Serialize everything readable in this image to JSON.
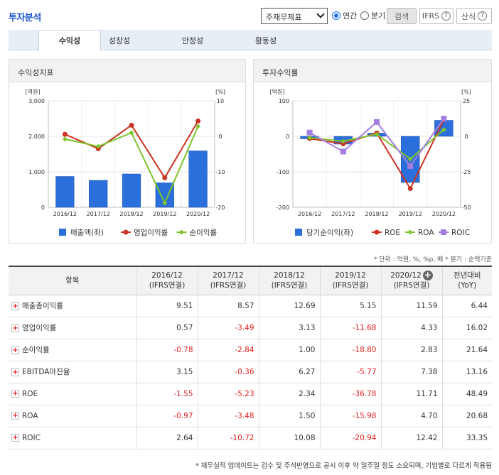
{
  "header": {
    "title": "투자분석",
    "select_value": "주재무제표",
    "radio_annual": "연간",
    "radio_quarter": "분기",
    "search_label": "검색",
    "ifrs_label": "IFRS",
    "formula_label": "산식",
    "help_glyph": "?"
  },
  "tabs": [
    {
      "label": "수익성"
    },
    {
      "label": "성장성"
    },
    {
      "label": "안정성"
    },
    {
      "label": "활동성"
    }
  ],
  "colors": {
    "bar": "#2a6fdb",
    "red": "#cc3322",
    "green": "#7dc42a",
    "purple": "#a37ee0"
  },
  "chart_data": [
    {
      "type": "bar+line",
      "title": "수익성지표",
      "y_left_unit": "[억원]",
      "y_right_unit": "[%]",
      "categories": [
        "2016/12",
        "2017/12",
        "2018/12",
        "2019/12",
        "2020/12"
      ],
      "y_left_ticks": [
        "3,000",
        "2,000",
        "1,000",
        "0"
      ],
      "y_right_ticks": [
        "10",
        "0",
        "-10",
        "-20"
      ],
      "y_left_range": [
        0,
        3000
      ],
      "y_right_range": [
        -20,
        10
      ],
      "series": [
        {
          "name": "매출액(좌)",
          "kind": "bar",
          "axis": "left",
          "values": [
            870,
            760,
            940,
            690,
            1590
          ]
        },
        {
          "name": "영업이익률",
          "kind": "line",
          "axis": "right",
          "values": [
            0.57,
            -3.49,
            3.13,
            -11.68,
            4.33
          ]
        },
        {
          "name": "순이익률",
          "kind": "line",
          "axis": "right",
          "values": [
            -0.78,
            -2.84,
            1.0,
            -18.8,
            2.83
          ]
        }
      ]
    },
    {
      "type": "bar+line",
      "title": "투자수익률",
      "y_left_unit": "[억원]",
      "y_right_unit": "[%]",
      "categories": [
        "2016/12",
        "2017/12",
        "2018/12",
        "2019/12",
        "2020/12"
      ],
      "y_left_ticks": [
        "100",
        "0",
        "-100",
        "-200"
      ],
      "y_right_ticks": [
        "25",
        "0",
        "-25",
        "-50"
      ],
      "y_left_range": [
        -200,
        100
      ],
      "y_right_range": [
        -50,
        25
      ],
      "series": [
        {
          "name": "당기순이익(좌)",
          "kind": "bar",
          "axis": "left",
          "values": [
            -7,
            -22,
            9,
            -130,
            45
          ]
        },
        {
          "name": "ROE",
          "kind": "line",
          "axis": "right",
          "values": [
            -1.55,
            -5.23,
            2.34,
            -36.78,
            11.71
          ]
        },
        {
          "name": "ROA",
          "kind": "line",
          "axis": "right",
          "values": [
            -0.97,
            -3.48,
            1.5,
            -15.98,
            4.7
          ]
        },
        {
          "name": "ROIC",
          "kind": "line",
          "axis": "right",
          "values": [
            2.64,
            -10.72,
            10.08,
            -20.94,
            12.42
          ]
        }
      ]
    }
  ],
  "unit_note": "* 단위 : 억원, %, %p, 배   * 분기 : 순액기준",
  "table": {
    "col_item": "항목",
    "columns": [
      {
        "year": "2016/12",
        "basis": "(IFRS연결)"
      },
      {
        "year": "2017/12",
        "basis": "(IFRS연결)"
      },
      {
        "year": "2018/12",
        "basis": "(IFRS연결)"
      },
      {
        "year": "2019/12",
        "basis": "(IFRS연결)"
      },
      {
        "year": "2020/12",
        "basis": "(IFRS연결)"
      }
    ],
    "col_yoy": "전년대비",
    "col_yoy_sub": "(YoY)",
    "rows": [
      {
        "label": "매출총이익률",
        "values": [
          "9.51",
          "8.57",
          "12.69",
          "5.15",
          "11.59"
        ],
        "yoy": "6.44"
      },
      {
        "label": "영업이익률",
        "values": [
          "0.57",
          "-3.49",
          "3.13",
          "-11.68",
          "4.33"
        ],
        "yoy": "16.02"
      },
      {
        "label": "순이익률",
        "values": [
          "-0.78",
          "-2.84",
          "1.00",
          "-18.80",
          "2.83"
        ],
        "yoy": "21.64"
      },
      {
        "label": "EBITDA마진율",
        "values": [
          "3.15",
          "-0.36",
          "6.27",
          "-5.77",
          "7.38"
        ],
        "yoy": "13.16"
      },
      {
        "label": "ROE",
        "values": [
          "-1.55",
          "-5.23",
          "2.34",
          "-36.78",
          "11.71"
        ],
        "yoy": "48.49"
      },
      {
        "label": "ROA",
        "values": [
          "-0.97",
          "-3.48",
          "1.50",
          "-15.98",
          "4.70"
        ],
        "yoy": "20.68"
      },
      {
        "label": "ROIC",
        "values": [
          "2.64",
          "-10.72",
          "10.08",
          "-20.94",
          "12.42"
        ],
        "yoy": "33.35"
      }
    ]
  },
  "bottom_note": "* 재무실적 업데이트는 검수 및 주석반영으로 공시 이후 약 일주일 정도 소요되며, 기업별로 다르게 적용됨"
}
